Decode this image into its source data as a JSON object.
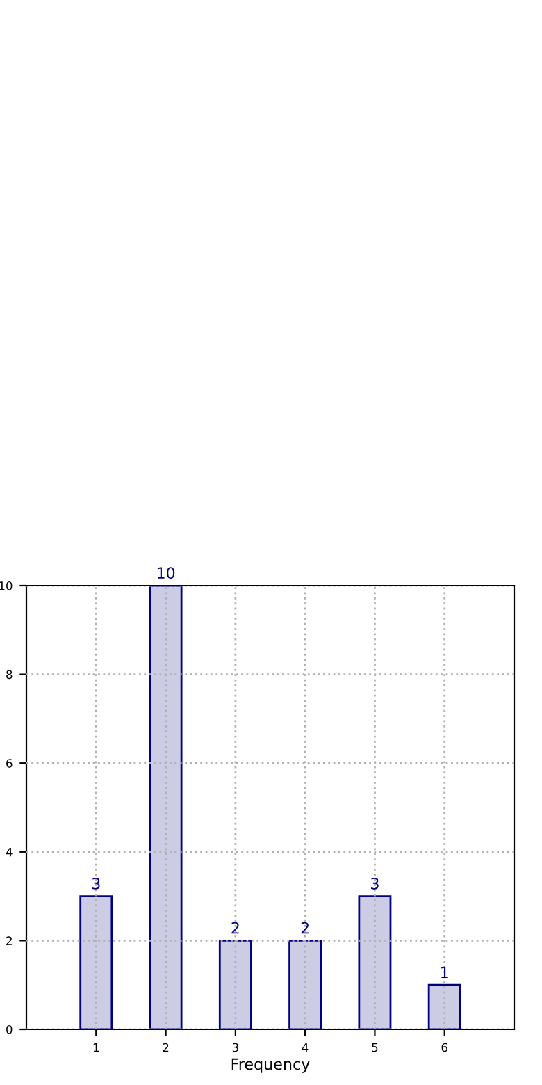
{
  "chart_data": {
    "type": "bar",
    "xlabel": "Frequency",
    "x": [
      1,
      2,
      3,
      4,
      5,
      6
    ],
    "series": [
      {
        "color": "#ccccE5",
        "values": [
          3,
          10,
          2,
          2,
          3,
          1
        ]
      }
    ],
    "xlim": [
      0,
      7
    ],
    "xticks": [
      1,
      2,
      3,
      4,
      5,
      6
    ],
    "ylim": [
      0,
      10
    ],
    "yticks": [
      0,
      2,
      4,
      6,
      8,
      10
    ],
    "grid": true,
    "data_labels": true
  }
}
